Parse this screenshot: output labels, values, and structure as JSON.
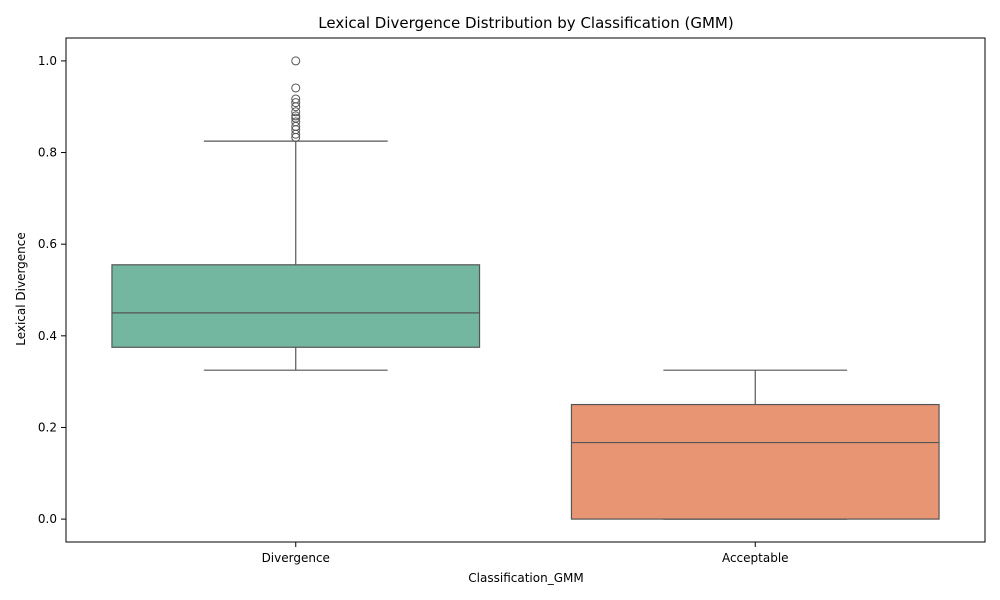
{
  "chart_data": {
    "type": "boxplot",
    "title": "Lexical Divergence Distribution by Classification (GMM)",
    "xlabel": "Classification_GMM",
    "ylabel": "Lexical Divergence",
    "ylim": [
      -0.05,
      1.05
    ],
    "yticks": [
      "0.0",
      "0.2",
      "0.4",
      "0.6",
      "0.8",
      "1.0"
    ],
    "grid": false,
    "categories": [
      {
        "name": "Divergence",
        "color": "#74b7a1",
        "whisker_low": 0.325,
        "q1": 0.375,
        "median": 0.45,
        "q3": 0.555,
        "whisker_high": 0.825,
        "outliers": [
          0.833,
          0.84,
          0.85,
          0.857,
          0.867,
          0.875,
          0.88,
          0.889,
          0.9,
          0.909,
          0.917,
          0.941,
          1.0
        ]
      },
      {
        "name": "Acceptable",
        "color": "#e89574",
        "whisker_low": 0.0,
        "q1": 0.0,
        "median": 0.167,
        "q3": 0.25,
        "whisker_high": 0.325,
        "outliers": []
      }
    ]
  }
}
